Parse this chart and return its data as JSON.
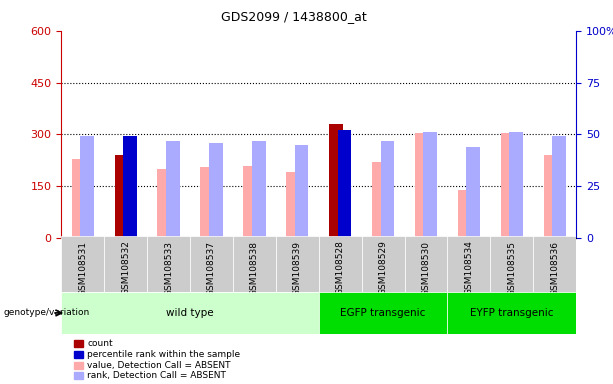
{
  "title": "GDS2099 / 1438800_at",
  "samples": [
    "GSM108531",
    "GSM108532",
    "GSM108533",
    "GSM108537",
    "GSM108538",
    "GSM108539",
    "GSM108528",
    "GSM108529",
    "GSM108530",
    "GSM108534",
    "GSM108535",
    "GSM108536"
  ],
  "count_values": [
    null,
    240,
    null,
    null,
    null,
    null,
    330,
    null,
    null,
    null,
    null,
    null
  ],
  "percentile_rank_scaled": [
    null,
    49,
    null,
    null,
    null,
    null,
    52,
    null,
    null,
    null,
    null,
    null
  ],
  "value_absent": [
    230,
    null,
    200,
    205,
    210,
    190,
    null,
    220,
    305,
    140,
    305,
    240
  ],
  "rank_absent_pct": [
    49,
    null,
    47,
    46,
    47,
    45,
    null,
    47,
    51,
    44,
    51,
    49
  ],
  "groups": [
    {
      "label": "wild type",
      "start": 0,
      "end": 6,
      "color": "#ccffcc"
    },
    {
      "label": "EGFP transgenic",
      "start": 6,
      "end": 9,
      "color": "#00dd00"
    },
    {
      "label": "EYFP transgenic",
      "start": 9,
      "end": 12,
      "color": "#00dd00"
    }
  ],
  "ylim_left": [
    0,
    600
  ],
  "ylim_right": [
    0,
    100
  ],
  "yticks_left": [
    0,
    150,
    300,
    450,
    600
  ],
  "yticks_right": [
    0,
    25,
    50,
    75,
    100
  ],
  "count_color": "#aa0000",
  "percentile_color": "#0000cc",
  "value_absent_color": "#ffaaaa",
  "rank_absent_color": "#aaaaff",
  "plot_bg": "#ffffff",
  "left_tick_color": "#cc0000",
  "right_tick_color": "#0000cc",
  "sample_box_color": "#cccccc",
  "genotype_label": "genotype/variation"
}
